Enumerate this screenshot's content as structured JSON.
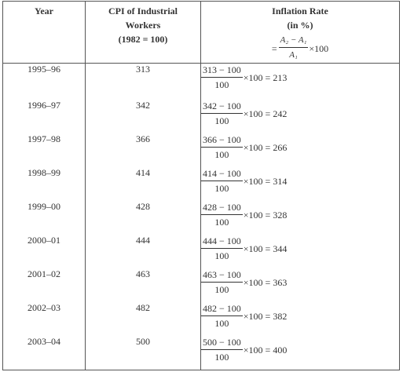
{
  "headers": {
    "year": "Year",
    "cpi_line1": "CPI of Industrial",
    "cpi_line2": "Workers",
    "cpi_line3": "(1982 = 100)",
    "inflation_line1": "Inflation Rate",
    "inflation_line2": "(in %)",
    "formula_eq": "=",
    "formula_numerator": "A₂ − A₁",
    "formula_denominator": "A₁",
    "formula_tail": "×100"
  },
  "rows": [
    {
      "year": "1995–96",
      "cpi": "313",
      "numerator": "313 − 100",
      "denominator": "100",
      "result": "×100 = 213"
    },
    {
      "year": "1996–97",
      "cpi": "342",
      "numerator": "342 − 100",
      "denominator": "100",
      "result": "×100 = 242"
    },
    {
      "year": "1997–98",
      "cpi": "366",
      "numerator": "366 − 100",
      "denominator": "100",
      "result": "×100 = 266"
    },
    {
      "year": "1998–99",
      "cpi": "414",
      "numerator": "414 − 100",
      "denominator": "100",
      "result": "×100 = 314"
    },
    {
      "year": "1999–00",
      "cpi": "428",
      "numerator": "428 − 100",
      "denominator": "100",
      "result": "×100 = 328"
    },
    {
      "year": "2000–01",
      "cpi": "444",
      "numerator": "444 − 100",
      "denominator": "100",
      "result": "×100 = 344"
    },
    {
      "year": "2001–02",
      "cpi": "463",
      "numerator": "463 − 100",
      "denominator": "100",
      "result": "×100 = 363"
    },
    {
      "year": "2002–03",
      "cpi": "482",
      "numerator": "482 − 100",
      "denominator": "100",
      "result": "×100 = 382"
    },
    {
      "year": "2003–04",
      "cpi": "500",
      "numerator": "500 − 100",
      "denominator": "100",
      "result": "×100 = 400"
    }
  ]
}
